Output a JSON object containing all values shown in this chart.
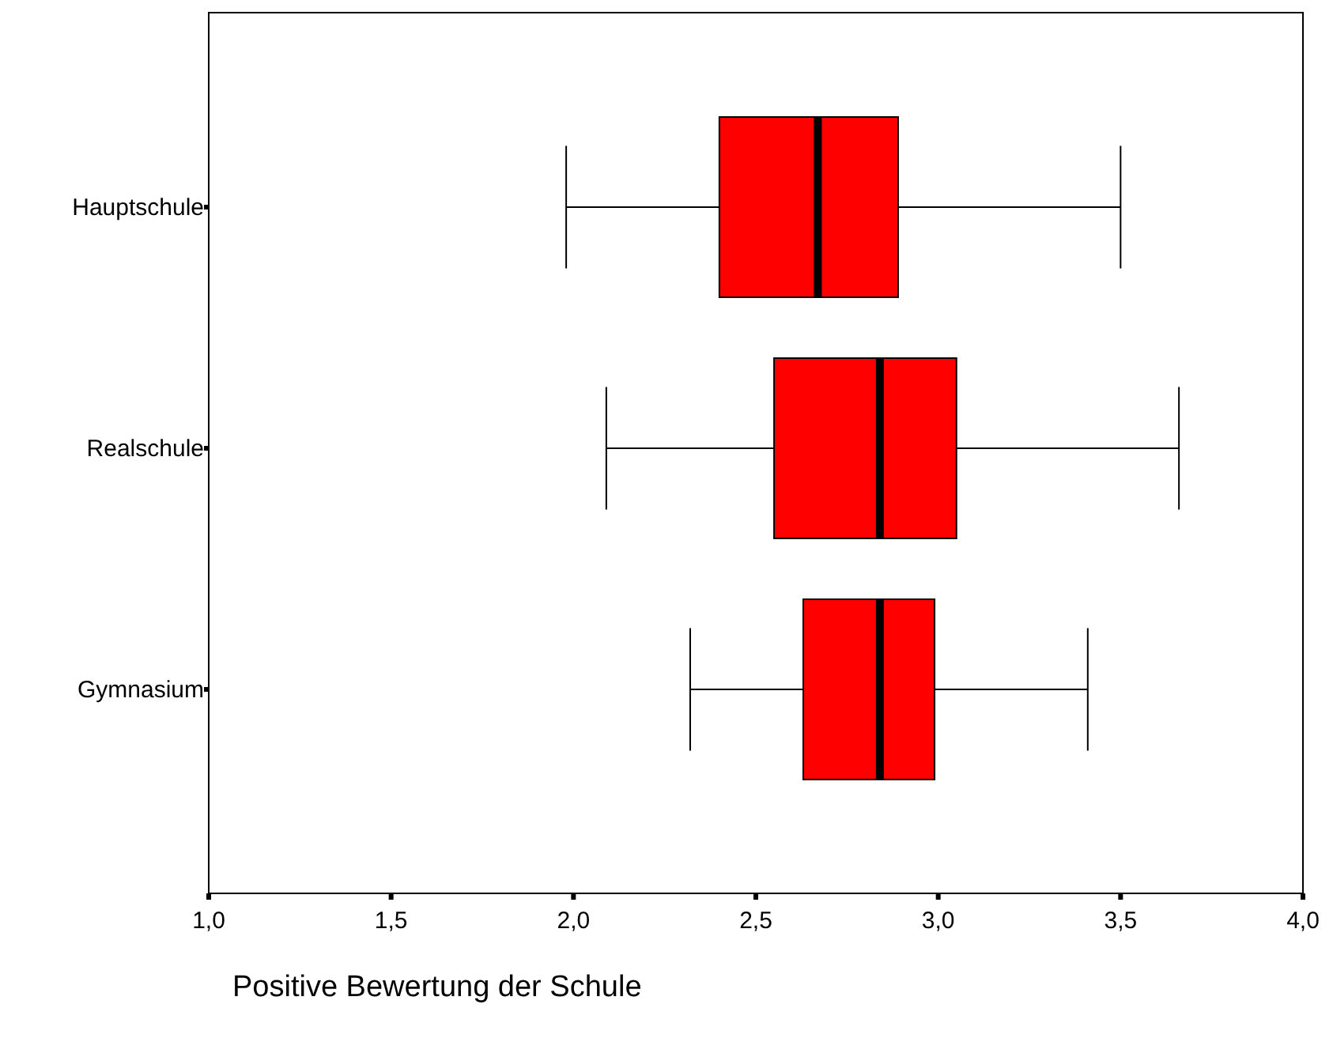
{
  "chart_data": {
    "type": "box",
    "orientation": "horizontal",
    "xlabel": "Positive Bewertung der Schule",
    "categories": [
      "Hauptschule",
      "Realschule",
      "Gymnasium"
    ],
    "color": "#ff0000",
    "boxes": [
      {
        "low": 1.98,
        "q1": 2.4,
        "median": 2.67,
        "q3": 2.89,
        "high": 3.5
      },
      {
        "low": 2.09,
        "q1": 2.55,
        "median": 2.84,
        "q3": 3.05,
        "high": 3.66
      },
      {
        "low": 2.32,
        "q1": 2.63,
        "median": 2.84,
        "q3": 2.99,
        "high": 3.41
      }
    ],
    "xlim": [
      1,
      4
    ],
    "xticks": [
      {
        "value": 1,
        "label": "1,0"
      },
      {
        "value": 1.5,
        "label": "1,5"
      },
      {
        "value": 2,
        "label": "2,0"
      },
      {
        "value": 2.5,
        "label": "2,5"
      },
      {
        "value": 3,
        "label": "3,0"
      },
      {
        "value": 3.5,
        "label": "3,5"
      },
      {
        "value": 4,
        "label": "4,0"
      }
    ],
    "grid": false
  }
}
